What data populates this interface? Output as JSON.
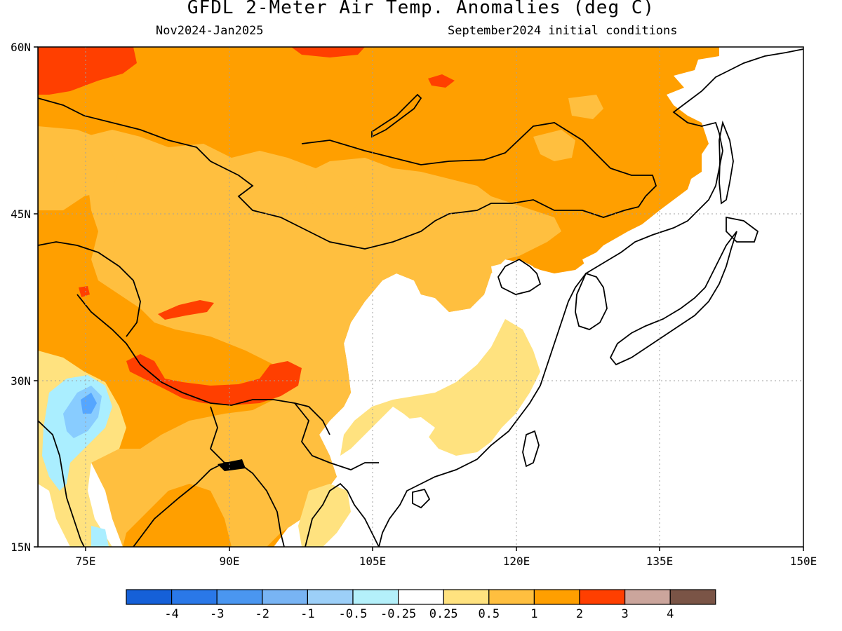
{
  "title": "GFDL 2-Meter Air Temp. Anomalies (deg C)",
  "subtitle_left": "Nov2024-Jan2025",
  "subtitle_right": "September2024 initial conditions",
  "map": {
    "lon_range": [
      70,
      150
    ],
    "lat_range": [
      15,
      60
    ],
    "lat_ticks": [
      {
        "value": 60,
        "label": "60N"
      },
      {
        "value": 45,
        "label": "45N"
      },
      {
        "value": 30,
        "label": "30N"
      },
      {
        "value": 15,
        "label": "15N"
      }
    ],
    "lon_ticks": [
      {
        "value": 75,
        "label": "75E"
      },
      {
        "value": 90,
        "label": "90E"
      },
      {
        "value": 105,
        "label": "105E"
      },
      {
        "value": 120,
        "label": "120E"
      },
      {
        "value": 135,
        "label": "135E"
      },
      {
        "value": 150,
        "label": "150E"
      }
    ],
    "field_description_classes": {
      "gt3": "#ff3f00",
      "2to3": "#ff9f00",
      "1to2": "#ffbf3f",
      "0.5to1": "#ffe27f",
      "neutral": "#ffffff",
      "neg0.25to0.5": "#aaeeff",
      "neg0.5to1": "#88ccff",
      "neg1to2": "#55a6ff"
    }
  },
  "colorbar": {
    "colors": [
      "#1560d8",
      "#2a78e8",
      "#4a96f0",
      "#78b4f4",
      "#9ccff8",
      "#b4f0fa",
      "#ffffff",
      "#ffe27f",
      "#ffbf3f",
      "#ff9f00",
      "#ff3f00",
      "#cba59c",
      "#7a5446"
    ],
    "labels": [
      "-4",
      "-3",
      "-2",
      "-1",
      "-0.5",
      "-0.25",
      "0.25",
      "0.5",
      "1",
      "2",
      "3",
      "4"
    ]
  },
  "colors": {
    "frame": "#000000",
    "coast": "#000000",
    "grid": "#a0a0a0"
  }
}
